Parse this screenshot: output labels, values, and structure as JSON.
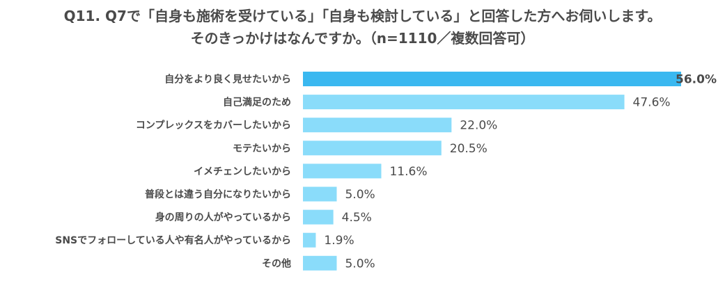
{
  "chart_data": {
    "type": "bar",
    "orientation": "horizontal",
    "title": "Q11. Q7で「自身も施術を受けている」「自身も検討している」と回答した方へお伺いします。",
    "subtitle": "そのきっかけはなんですか。（n=1110／複数回答可）",
    "categories": [
      "自分をより良く見せたいから",
      "自己満足のため",
      "コンプレックスをカバーしたいから",
      "モテたいから",
      "イメチェンしたいから",
      "普段とは違う自分になりたいから",
      "身の周りの人がやっているから",
      "SNSでフォローしている人や有名人がやっているから",
      "その他"
    ],
    "values": [
      56.0,
      47.6,
      22.0,
      20.5,
      11.6,
      5.0,
      4.5,
      1.9,
      5.0
    ],
    "value_labels": [
      "56.0%",
      "47.6%",
      "22.0%",
      "20.5%",
      "11.6%",
      "5.0%",
      "4.5%",
      "1.9%",
      "5.0%"
    ],
    "xlim": [
      0,
      56
    ],
    "grid": false,
    "colors": {
      "highlight": "#3ab8f0",
      "bar": "#8adcfa",
      "text": "#4a4a4a"
    }
  }
}
